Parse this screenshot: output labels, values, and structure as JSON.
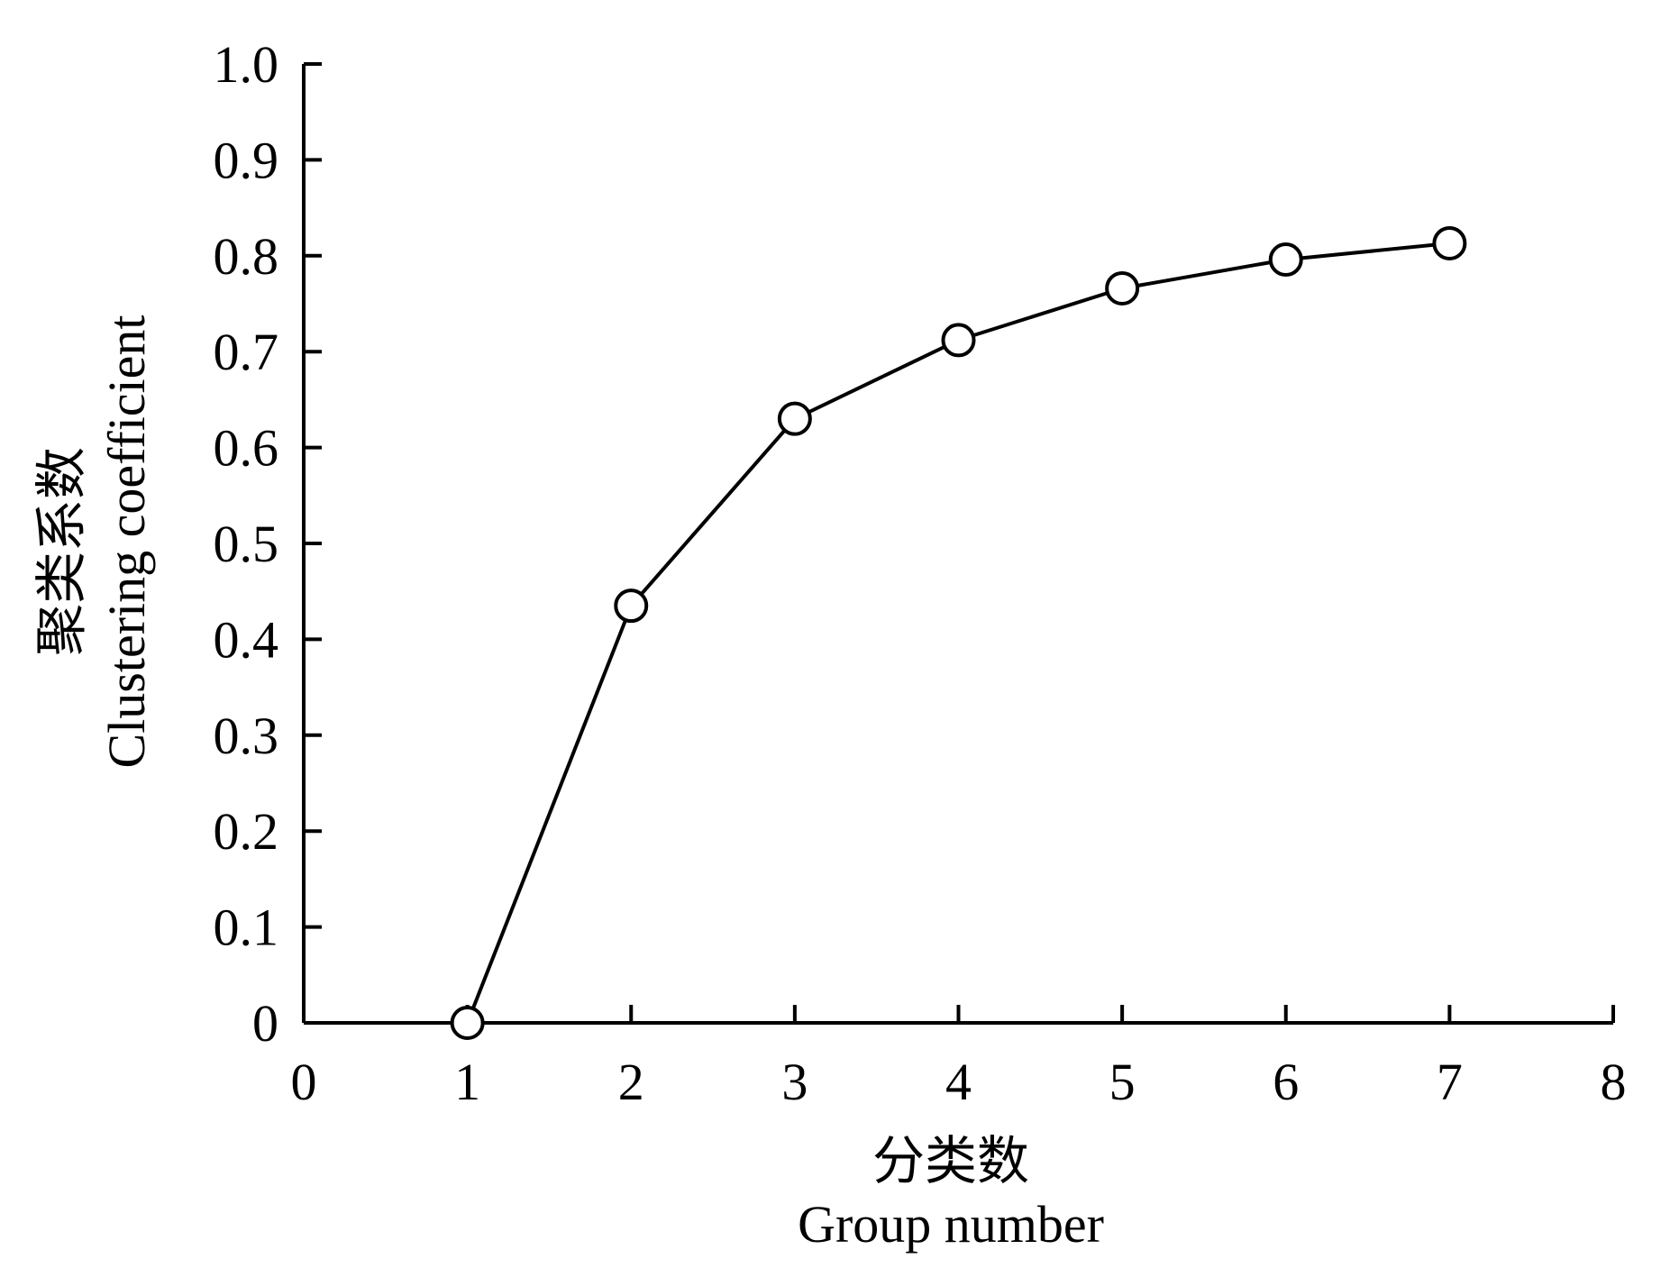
{
  "chart_data": {
    "type": "line",
    "title": "",
    "xlabel": {
      "zh": "分类数",
      "en": "Group number"
    },
    "ylabel": {
      "zh": "聚类系数",
      "en": "Clustering coefficient"
    },
    "xlim": [
      0,
      8
    ],
    "ylim": [
      0,
      1.0
    ],
    "x_ticks": [
      "0",
      "1",
      "2",
      "3",
      "4",
      "5",
      "6",
      "7",
      "8"
    ],
    "y_ticks": [
      "0",
      "0.1",
      "0.2",
      "0.3",
      "0.4",
      "0.5",
      "0.6",
      "0.7",
      "0.8",
      "0.9",
      "1.0"
    ],
    "grid": false,
    "legend": "none",
    "series": [
      {
        "x": [
          1,
          2,
          3,
          4,
          5,
          6,
          7
        ],
        "y": [
          0,
          0.435,
          0.63,
          0.712,
          0.766,
          0.796,
          0.813
        ],
        "marker": "open-circle",
        "line_color": "#000000"
      }
    ]
  }
}
